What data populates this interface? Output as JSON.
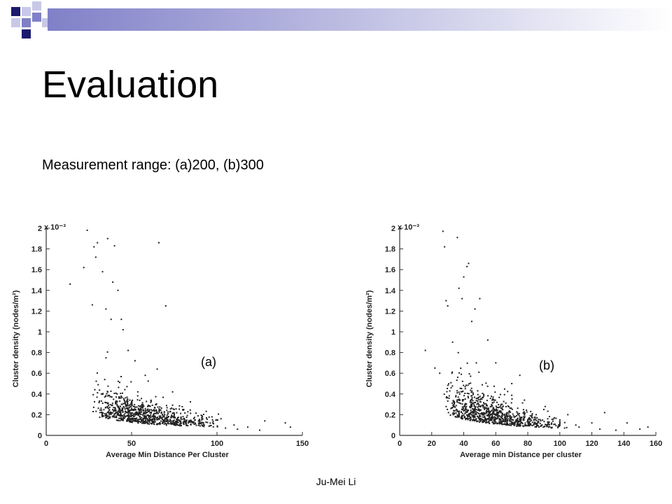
{
  "slide": {
    "title": "Evaluation",
    "subtitle": "Measurement range: (a)200, (b)300",
    "footer": "Ju-Mei Li",
    "decor_colors": {
      "navy": "#1a1a6e",
      "periwinkle": "#8080c8",
      "lavender": "#c8c8e8"
    }
  },
  "chart_data": [
    {
      "type": "scatter",
      "panel_label": "(a)",
      "xlabel": "Average Min Distance Per Cluster",
      "ylabel": "Cluster density (nodes/m²)",
      "yscale_note": "x 10⁻³",
      "xlim": [
        0,
        150
      ],
      "ylim": [
        0,
        2
      ],
      "xticks": [
        "0",
        "50",
        "100",
        "150"
      ],
      "yticks": [
        "0",
        "0.2",
        "0.4",
        "0.6",
        "0.8",
        "1",
        "1.2",
        "1.4",
        "1.6",
        "1.8",
        "2"
      ],
      "marker_color": "#222222",
      "points": [
        [
          14,
          1.46
        ],
        [
          22,
          1.62
        ],
        [
          24,
          1.98
        ],
        [
          27,
          1.26
        ],
        [
          28,
          1.82
        ],
        [
          29,
          1.72
        ],
        [
          30,
          1.86
        ],
        [
          33,
          1.58
        ],
        [
          35,
          1.22
        ],
        [
          36,
          1.9
        ],
        [
          38,
          1.12
        ],
        [
          39,
          1.48
        ],
        [
          40,
          1.83
        ],
        [
          42,
          1.4
        ],
        [
          44,
          1.12
        ],
        [
          45,
          1.02
        ],
        [
          48,
          0.82
        ],
        [
          52,
          0.72
        ],
        [
          58,
          0.58
        ],
        [
          65,
          0.64
        ],
        [
          66,
          1.86
        ],
        [
          70,
          1.25
        ],
        [
          74,
          0.42
        ],
        [
          80,
          0.25
        ],
        [
          90,
          0.12
        ],
        [
          100,
          0.15
        ],
        [
          105,
          0.07
        ],
        [
          110,
          0.1
        ],
        [
          112,
          0.06
        ],
        [
          118,
          0.08
        ],
        [
          125,
          0.05
        ],
        [
          128,
          0.14
        ],
        [
          140,
          0.12
        ],
        [
          143,
          0.08
        ]
      ],
      "cloud": {
        "x_min": 25,
        "x_peak": 45,
        "x_max": 105,
        "y_floor": 0.08,
        "y_peak": 0.45,
        "y_decay": 0.032,
        "count": 900
      }
    },
    {
      "type": "scatter",
      "panel_label": "(b)",
      "xlabel": "Average min Distance per cluster",
      "ylabel": "Cluster density (nodes/m²)",
      "yscale_note": "x 10⁻³",
      "xlim": [
        0,
        160
      ],
      "ylim": [
        0,
        2
      ],
      "xticks": [
        "0",
        "20",
        "40",
        "60",
        "80",
        "100",
        "120",
        "140",
        "160"
      ],
      "yticks": [
        "0",
        "0.2",
        "0.4",
        "0.6",
        "0.8",
        "1",
        "1.2",
        "1.4",
        "1.6",
        "1.8",
        "2"
      ],
      "marker_color": "#222222",
      "points": [
        [
          16,
          0.82
        ],
        [
          22,
          0.65
        ],
        [
          25,
          0.6
        ],
        [
          27,
          1.97
        ],
        [
          28,
          1.82
        ],
        [
          29,
          1.3
        ],
        [
          30,
          1.25
        ],
        [
          33,
          0.9
        ],
        [
          36,
          1.91
        ],
        [
          37,
          1.42
        ],
        [
          39,
          1.32
        ],
        [
          40,
          1.53
        ],
        [
          42,
          1.63
        ],
        [
          43,
          1.66
        ],
        [
          45,
          1.1
        ],
        [
          47,
          1.22
        ],
        [
          50,
          1.32
        ],
        [
          55,
          0.92
        ],
        [
          60,
          0.7
        ],
        [
          70,
          0.5
        ],
        [
          75,
          0.58
        ],
        [
          90,
          0.25
        ],
        [
          100,
          0.15
        ],
        [
          105,
          0.2
        ],
        [
          110,
          0.1
        ],
        [
          112,
          0.08
        ],
        [
          120,
          0.12
        ],
        [
          125,
          0.06
        ],
        [
          128,
          0.22
        ],
        [
          135,
          0.05
        ],
        [
          142,
          0.12
        ],
        [
          150,
          0.06
        ],
        [
          155,
          0.08
        ]
      ],
      "cloud": {
        "x_min": 27,
        "x_peak": 45,
        "x_max": 105,
        "y_floor": 0.06,
        "y_peak": 0.5,
        "y_decay": 0.03,
        "count": 900
      }
    }
  ]
}
